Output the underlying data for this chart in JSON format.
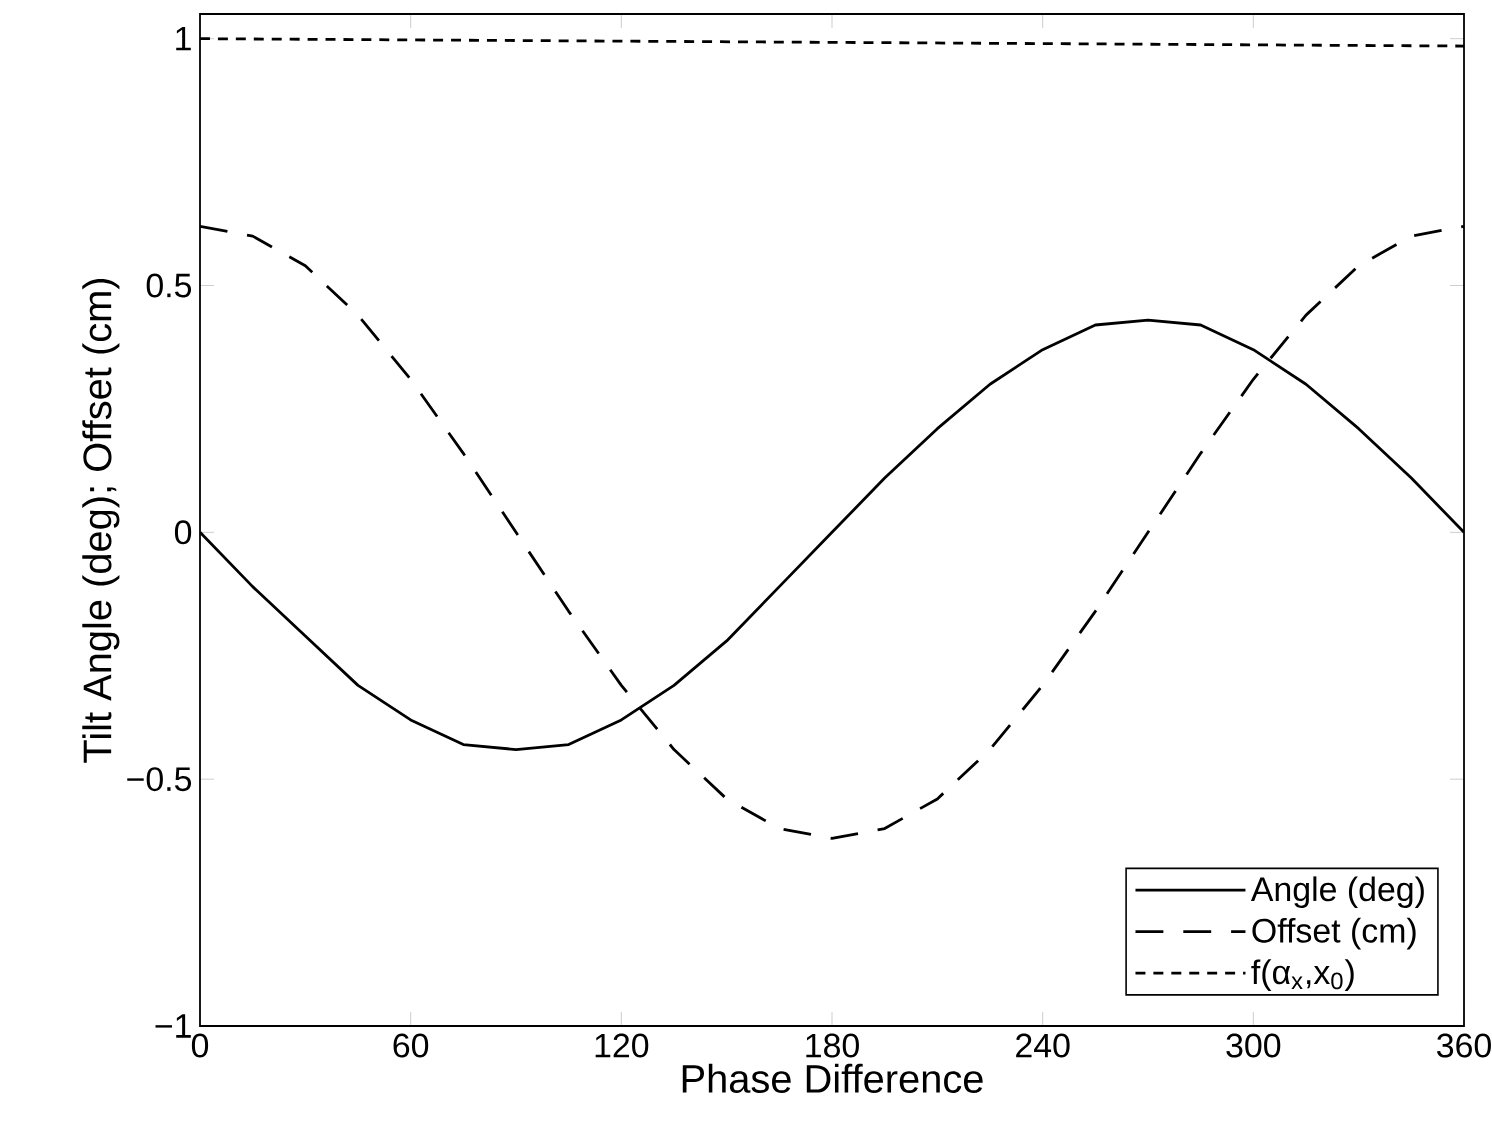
{
  "chart_data": {
    "type": "line",
    "xlabel": "Phase Difference",
    "ylabel": "Tilt Angle (deg); Offset (cm)",
    "x": [
      0,
      15,
      30,
      45,
      60,
      75,
      90,
      105,
      120,
      135,
      150,
      165,
      180,
      195,
      210,
      225,
      240,
      255,
      270,
      285,
      300,
      315,
      330,
      345,
      360
    ],
    "series": [
      {
        "name": "Angle (deg)",
        "color": "#000000",
        "line_style": "solid",
        "values": [
          0,
          -0.11,
          -0.21,
          -0.31,
          -0.38,
          -0.43,
          -0.44,
          -0.43,
          -0.38,
          -0.31,
          -0.22,
          -0.11,
          0,
          0.11,
          0.21,
          0.3,
          0.37,
          0.42,
          0.43,
          0.42,
          0.37,
          0.3,
          0.21,
          0.11,
          0
        ]
      },
      {
        "name": "Offset (cm)",
        "color": "#000000",
        "line_style": "long dashed",
        "values": [
          0.62,
          0.6,
          0.54,
          0.44,
          0.31,
          0.16,
          0,
          -0.16,
          -0.31,
          -0.44,
          -0.54,
          -0.6,
          -0.62,
          -0.6,
          -0.54,
          -0.44,
          -0.31,
          -0.16,
          0,
          0.16,
          0.31,
          0.44,
          0.54,
          0.6,
          0.62
        ]
      },
      {
        "name": "f(α$_{x}$,x$_{0}$)",
        "color": "#000000",
        "line_style": "dashed",
        "x": [
          0,
          360
        ],
        "values": [
          1,
          0.985
        ]
      }
    ],
    "xlim": [
      0,
      360
    ],
    "ylim": [
      -1,
      1.05
    ],
    "xticks": [
      0,
      60,
      120,
      180,
      240,
      300,
      360
    ],
    "yticks": [
      {
        "value": -1,
        "label": "−1"
      },
      {
        "value": -0.5,
        "label": "−0.5"
      },
      0,
      0.5,
      1
    ],
    "legend": "bottom right",
    "grid": false,
    "marker": "none"
  }
}
